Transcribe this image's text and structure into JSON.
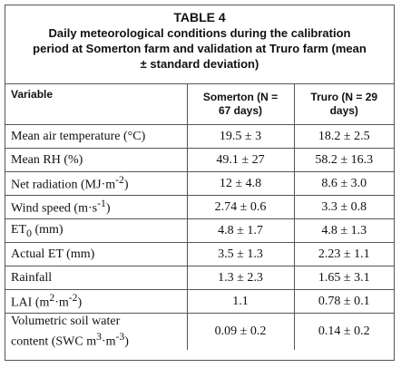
{
  "caption": {
    "title": "TABLE 4",
    "subtitle_lines": [
      "Daily meteorological conditions during the calibration",
      "period at Somerton farm and validation at Truro farm (mean",
      "± standard deviation)"
    ]
  },
  "table": {
    "headers": {
      "variable": "Variable",
      "somerton": [
        "Somerton (N =",
        "67 days)"
      ],
      "truro": [
        "Truro (N = 29",
        "days)"
      ]
    },
    "rows": [
      {
        "label": "Mean air temperature (°C)",
        "somerton": "19.5 ± 3",
        "truro": "18.2 ± 2.5"
      },
      {
        "label": "Mean RH (%)",
        "somerton": "49.1 ± 27",
        "truro": "58.2 ± 16.3"
      },
      {
        "label_pre": "Net radiation (MJ·m",
        "label_sup": "-2",
        "label_post": ")",
        "somerton": "12 ± 4.8",
        "truro": "8.6 ± 3.0"
      },
      {
        "label_pre": "Wind speed (m·s",
        "label_sup": "-1",
        "label_post": ")",
        "somerton": "2.74 ± 0.6",
        "truro": "3.3 ± 0.8"
      },
      {
        "label_pre": "ET",
        "label_sub": "0",
        "label_post": " (mm)",
        "somerton": "4.8 ± 1.7",
        "truro": "4.8 ± 1.3"
      },
      {
        "label": "Actual ET (mm)",
        "somerton": "3.5 ± 1.3",
        "truro": "2.23 ± 1.1"
      },
      {
        "label": "Rainfall",
        "somerton": "1.3 ± 2.3",
        "truro": "1.65 ± 3.1"
      },
      {
        "label_pre": "LAI (m",
        "label_sup": "2",
        "label_mid": "·m",
        "label_sup2": "-2",
        "label_post": ")",
        "somerton": "1.1",
        "truro": "0.78 ± 0.1"
      },
      {
        "label_line1": "Volumetric soil water",
        "label_line2_pre": "content (SWC m",
        "label_sup": "3",
        "label_mid": "·m",
        "label_sup2": "-3",
        "label_post": ")",
        "somerton": "0.09 ± 0.2",
        "truro": "0.14 ± 0.2"
      }
    ]
  }
}
